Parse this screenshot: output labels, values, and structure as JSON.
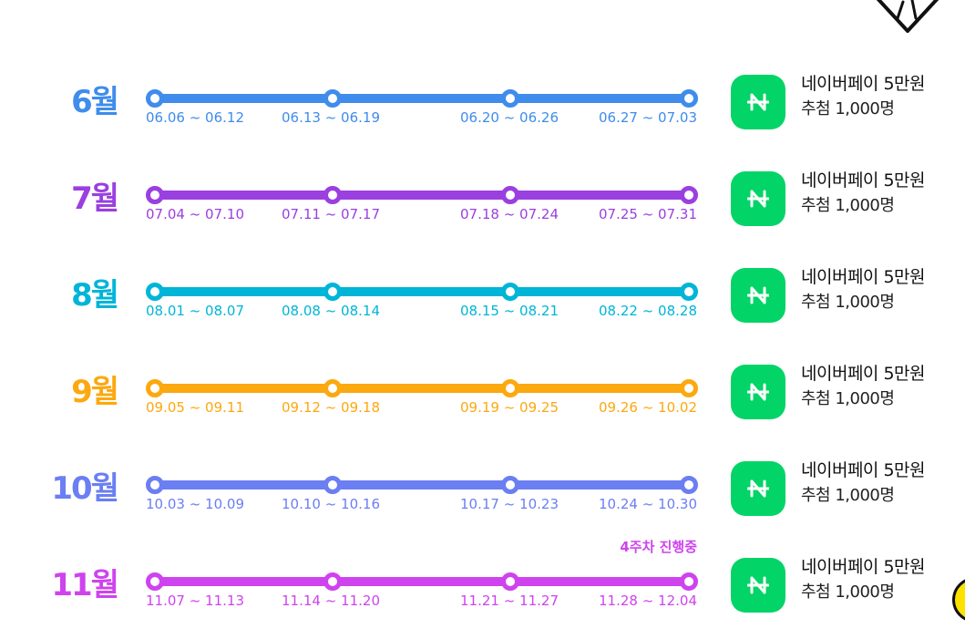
{
  "months": [
    {
      "label": "6월",
      "color": "#3f8cec",
      "weeks": [
        "06.06 ~ 06.12",
        "06.13 ~ 06.19",
        "06.20 ~ 06.26",
        "06.27 ~ 07.03"
      ],
      "prize_title": "네이버페이 5만원",
      "prize_count": "추첨 1,000명"
    },
    {
      "label": "7월",
      "color": "#9a3fe0",
      "weeks": [
        "07.04 ~ 07.10",
        "07.11 ~ 07.17",
        "07.18 ~ 07.24",
        "07.25 ~ 07.31"
      ],
      "prize_title": "네이버페이 5만원",
      "prize_count": "추첨 1,000명"
    },
    {
      "label": "8월",
      "color": "#00b5d8",
      "weeks": [
        "08.01 ~ 08.07",
        "08.08 ~ 08.14",
        "08.15 ~ 08.21",
        "08.22 ~ 08.28"
      ],
      "prize_title": "네이버페이 5만원",
      "prize_count": "추첨 1,000명"
    },
    {
      "label": "9월",
      "color": "#fca80f",
      "weeks": [
        "09.05 ~ 09.11",
        "09.12 ~ 09.18",
        "09.19 ~ 09.25",
        "09.26 ~ 10.02"
      ],
      "prize_title": "네이버페이 5만원",
      "prize_count": "추첨 1,000명"
    },
    {
      "label": "10월",
      "color": "#6b7ef2",
      "weeks": [
        "10.03 ~ 10.09",
        "10.10 ~ 10.16",
        "10.17 ~ 10.23",
        "10.24 ~ 10.30"
      ],
      "prize_title": "네이버페이 5만원",
      "prize_count": "추첨 1,000명"
    },
    {
      "label": "11월",
      "color": "#cf43ee",
      "weeks": [
        "11.07 ~ 11.13",
        "11.14 ~ 11.20",
        "11.21 ~ 11.27",
        "11.28 ~ 12.04"
      ],
      "prize_title": "네이버페이 5만원",
      "prize_count": "추첨 1,000명",
      "progress_note": "4주차 진행중"
    }
  ],
  "icons": {
    "prize": "naver-pay-icon",
    "decoration": "diamond-icon",
    "floating": "floating-circle-icon"
  },
  "colors": {
    "naver_green": "#03d467",
    "progress_note": "#cf43ee"
  }
}
